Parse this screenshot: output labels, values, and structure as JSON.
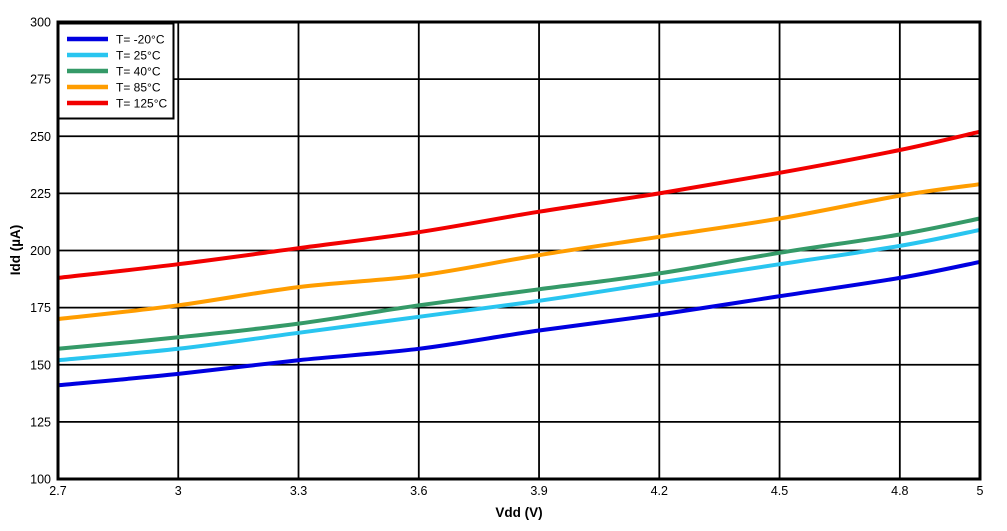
{
  "chart_data": {
    "type": "line",
    "title": "",
    "xlabel": "Vdd (V)",
    "ylabel": "Idd (µA)",
    "xlim": [
      2.7,
      5
    ],
    "ylim": [
      100,
      300
    ],
    "x_ticks": [
      2.7,
      3,
      3.3,
      3.6,
      3.9,
      4.2,
      4.5,
      4.8,
      5
    ],
    "x_tick_labels": [
      "2.7",
      "3",
      "3.3",
      "3.6",
      "3.9",
      "4.2",
      "4.5",
      "4.8",
      "5"
    ],
    "y_ticks": [
      100,
      125,
      150,
      175,
      200,
      225,
      250,
      275,
      300
    ],
    "y_tick_labels": [
      "100",
      "125",
      "150",
      "175",
      "200",
      "225",
      "250",
      "275",
      "300"
    ],
    "grid": true,
    "grid_color": "#000000",
    "frame_color": "#000000",
    "background_color": "#ffffff",
    "legend_position": "top-left",
    "x": [
      2.7,
      3.0,
      3.3,
      3.6,
      3.9,
      4.2,
      4.5,
      4.8,
      5.0
    ],
    "series": [
      {
        "name": "T= -20°C",
        "color": "#0000E0",
        "values": [
          141,
          146,
          152,
          157,
          165,
          172,
          180,
          188,
          195
        ]
      },
      {
        "name": "T= 25°C",
        "color": "#29C5F0",
        "values": [
          152,
          157,
          164,
          171,
          178,
          186,
          194,
          202,
          209
        ]
      },
      {
        "name": "T= 40°C",
        "color": "#359A68",
        "values": [
          157,
          162,
          168,
          176,
          183,
          190,
          199,
          207,
          214
        ]
      },
      {
        "name": "T= 85°C",
        "color": "#FF9D00",
        "values": [
          170,
          176,
          184,
          189,
          198,
          206,
          214,
          224,
          229
        ]
      },
      {
        "name": "T= 125°C",
        "color": "#F20000",
        "values": [
          188,
          194,
          201,
          208,
          217,
          225,
          234,
          244,
          252
        ]
      }
    ]
  }
}
